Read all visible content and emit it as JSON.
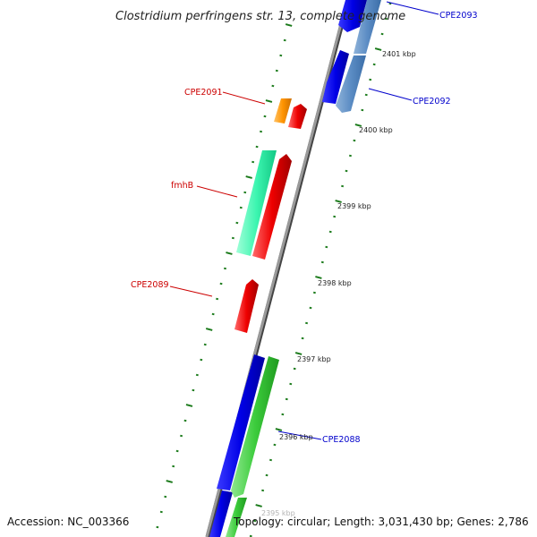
{
  "title": "Clostridium perfringens str. 13, complete genome",
  "footer": {
    "accession": "Accession: NC_003366",
    "summary": "Topology: circular; Length: 3,031,430 bp; Genes: 2,786"
  },
  "colors": {
    "backbone": "#888888",
    "backbone_shadow": "#444444",
    "tick": "#1a7a1a",
    "label_forward": "#cc0000",
    "label_reverse": "#0000cc"
  },
  "ticks": [
    {
      "label": "2401 kbp"
    },
    {
      "label": "2400 kbp"
    },
    {
      "label": "2399 kbp"
    },
    {
      "label": "2398 kbp"
    },
    {
      "label": "2397 kbp"
    },
    {
      "label": "2396 kbp"
    },
    {
      "label": "2395 kbp"
    }
  ],
  "genes": [
    {
      "name": "CPE2093",
      "strand": "reverse",
      "label_color": "#0000cc"
    },
    {
      "name": "CPE2092",
      "strand": "reverse",
      "label_color": "#0000cc"
    },
    {
      "name": "CPE2091",
      "strand": "forward",
      "label_color": "#cc0000"
    },
    {
      "name": "fmhB",
      "strand": "forward",
      "label_color": "#cc0000"
    },
    {
      "name": "CPE2089",
      "strand": "forward",
      "label_color": "#cc0000"
    },
    {
      "name": "CPE2088",
      "strand": "reverse",
      "label_color": "#0000cc"
    }
  ]
}
